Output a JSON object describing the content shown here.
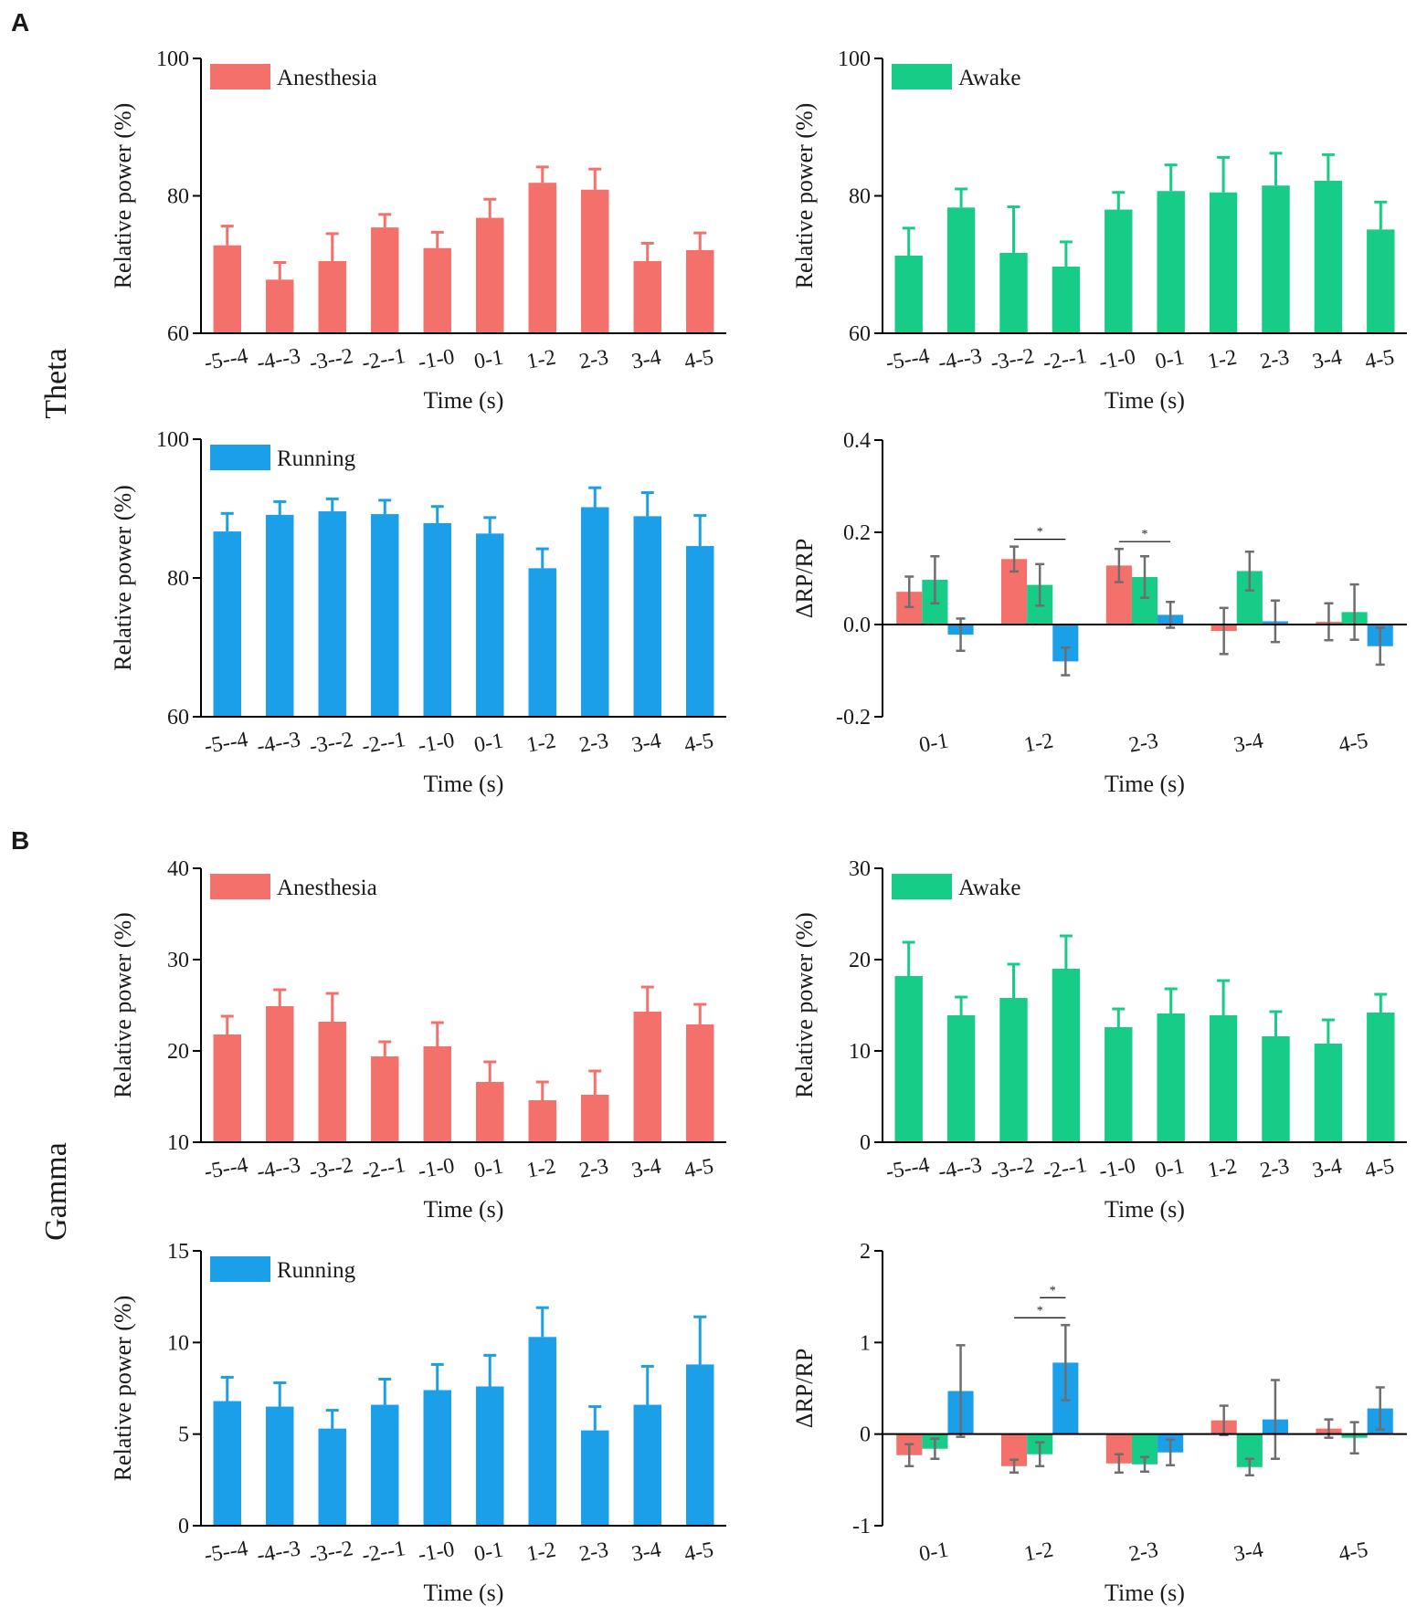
{
  "panels": {
    "A": {
      "letter": "A",
      "band": "Theta"
    },
    "B": {
      "letter": "B",
      "band": "Gamma"
    }
  },
  "colors": {
    "anesthesia": "#F4706B",
    "awake": "#16CC86",
    "running": "#1B9FE9",
    "error_bar_delta": "#6E6E6E",
    "axis": "#000000"
  },
  "chart_data": [
    {
      "id": "theta-anesthesia",
      "type": "bar",
      "series_key": "anesthesia",
      "legend": "Anesthesia",
      "categories": [
        "-5--4",
        "-4--3",
        "-3--2",
        "-2--1",
        "-1-0",
        "0-1",
        "1-2",
        "2-3",
        "3-4",
        "4-5"
      ],
      "values": [
        72.8,
        67.8,
        70.5,
        75.4,
        72.4,
        76.8,
        81.9,
        80.9,
        70.5,
        72.1
      ],
      "errors": [
        2.8,
        2.5,
        4.0,
        1.9,
        2.3,
        2.7,
        2.3,
        3.0,
        2.6,
        2.5
      ],
      "ylim": [
        60,
        100
      ],
      "yticks": [
        60,
        80,
        100
      ],
      "yticklabels": [
        "60",
        "80",
        "100"
      ],
      "ylabel": "Relative power (%)",
      "xlabel": "Time (s)"
    },
    {
      "id": "theta-awake",
      "type": "bar",
      "series_key": "awake",
      "legend": "Awake",
      "categories": [
        "-5--4",
        "-4--3",
        "-3--2",
        "-2--1",
        "-1-0",
        "0-1",
        "1-2",
        "2-3",
        "3-4",
        "4-5"
      ],
      "values": [
        71.3,
        78.3,
        71.7,
        69.7,
        78.0,
        80.7,
        80.5,
        81.5,
        82.2,
        75.1
      ],
      "errors": [
        4.0,
        2.7,
        6.7,
        3.6,
        2.5,
        3.8,
        5.1,
        4.7,
        3.8,
        4.0
      ],
      "ylim": [
        60,
        100
      ],
      "yticks": [
        60,
        80,
        100
      ],
      "yticklabels": [
        "60",
        "80",
        "100"
      ],
      "ylabel": "Relative power (%)",
      "xlabel": "Time (s)"
    },
    {
      "id": "theta-running",
      "type": "bar",
      "series_key": "running",
      "legend": "Running",
      "categories": [
        "-5--4",
        "-4--3",
        "-3--2",
        "-2--1",
        "-1-0",
        "0-1",
        "1-2",
        "2-3",
        "3-4",
        "4-5"
      ],
      "values": [
        86.7,
        89.1,
        89.6,
        89.2,
        87.9,
        86.4,
        81.4,
        90.2,
        88.9,
        84.6
      ],
      "errors": [
        2.6,
        1.9,
        1.8,
        2.0,
        2.4,
        2.3,
        2.8,
        2.8,
        3.4,
        4.4
      ],
      "ylim": [
        60,
        100
      ],
      "yticks": [
        60,
        80,
        100
      ],
      "yticklabels": [
        "60",
        "80",
        "100"
      ],
      "ylabel": "Relative power (%)",
      "xlabel": "Time (s)"
    },
    {
      "id": "theta-delta",
      "type": "grouped-bar",
      "categories": [
        "0-1",
        "1-2",
        "2-3",
        "3-4",
        "4-5"
      ],
      "series": [
        {
          "key": "anesthesia",
          "values": [
            0.071,
            0.142,
            0.128,
            -0.014,
            0.006
          ],
          "errors": [
            0.033,
            0.027,
            0.036,
            0.05,
            0.04
          ]
        },
        {
          "key": "awake",
          "values": [
            0.097,
            0.086,
            0.103,
            0.116,
            0.027
          ],
          "errors": [
            0.051,
            0.045,
            0.045,
            0.042,
            0.06
          ]
        },
        {
          "key": "running",
          "values": [
            -0.022,
            -0.08,
            0.021,
            0.007,
            -0.047
          ],
          "errors": [
            0.035,
            0.03,
            0.028,
            0.045,
            0.04
          ]
        }
      ],
      "significance": [
        {
          "category": "1-2",
          "from": "anesthesia",
          "to": "running",
          "label": "*"
        },
        {
          "category": "2-3",
          "from": "anesthesia",
          "to": "running",
          "label": "*"
        }
      ],
      "ylim": [
        -0.2,
        0.4
      ],
      "yticks": [
        -0.2,
        0.0,
        0.2,
        0.4
      ],
      "yticklabels": [
        "-0.2",
        "0.0",
        "0.2",
        "0.4"
      ],
      "ylabel": "ΔRP/RP",
      "xlabel": "Time (s)"
    },
    {
      "id": "gamma-anesthesia",
      "type": "bar",
      "series_key": "anesthesia",
      "legend": "Anesthesia",
      "categories": [
        "-5--4",
        "-4--3",
        "-3--2",
        "-2--1",
        "-1-0",
        "0-1",
        "1-2",
        "2-3",
        "3-4",
        "4-5"
      ],
      "values": [
        21.8,
        24.9,
        23.2,
        19.4,
        20.5,
        16.6,
        14.6,
        15.2,
        24.3,
        22.9
      ],
      "errors": [
        2.0,
        1.8,
        3.1,
        1.6,
        2.6,
        2.2,
        2.0,
        2.6,
        2.7,
        2.2
      ],
      "ylim": [
        10,
        40
      ],
      "yticks": [
        10,
        20,
        30,
        40
      ],
      "yticklabels": [
        "10",
        "20",
        "30",
        "40"
      ],
      "ylabel": "Relative power (%)",
      "xlabel": "Time (s)"
    },
    {
      "id": "gamma-awake",
      "type": "bar",
      "series_key": "awake",
      "legend": "Awake",
      "categories": [
        "-5--4",
        "-4--3",
        "-3--2",
        "-2--1",
        "-1-0",
        "0-1",
        "1-2",
        "2-3",
        "3-4",
        "4-5"
      ],
      "values": [
        18.2,
        13.9,
        15.8,
        19.0,
        12.6,
        14.1,
        13.9,
        11.6,
        10.8,
        14.2
      ],
      "errors": [
        3.7,
        2.0,
        3.7,
        3.6,
        2.0,
        2.7,
        3.8,
        2.7,
        2.6,
        2.0
      ],
      "ylim": [
        0,
        30
      ],
      "yticks": [
        0,
        10,
        20,
        30
      ],
      "yticklabels": [
        "0",
        "10",
        "20",
        "30"
      ],
      "ylabel": "Relative power (%)",
      "xlabel": "Time (s)"
    },
    {
      "id": "gamma-running",
      "type": "bar",
      "series_key": "running",
      "legend": "Running",
      "categories": [
        "-5--4",
        "-4--3",
        "-3--2",
        "-2--1",
        "-1-0",
        "0-1",
        "1-2",
        "2-3",
        "3-4",
        "4-5"
      ],
      "values": [
        6.8,
        6.5,
        5.3,
        6.6,
        7.4,
        7.6,
        10.3,
        5.2,
        6.6,
        8.8
      ],
      "errors": [
        1.3,
        1.3,
        1.0,
        1.4,
        1.4,
        1.7,
        1.6,
        1.3,
        2.1,
        2.6
      ],
      "ylim": [
        0,
        15
      ],
      "yticks": [
        0,
        5,
        10,
        15
      ],
      "yticklabels": [
        "0",
        "5",
        "10",
        "15"
      ],
      "ylabel": "Relative power (%)",
      "xlabel": "Time (s)"
    },
    {
      "id": "gamma-delta",
      "type": "grouped-bar",
      "categories": [
        "0-1",
        "1-2",
        "2-3",
        "3-4",
        "4-5"
      ],
      "series": [
        {
          "key": "anesthesia",
          "values": [
            -0.23,
            -0.35,
            -0.32,
            0.15,
            0.06
          ],
          "errors": [
            0.12,
            0.07,
            0.1,
            0.16,
            0.1
          ]
        },
        {
          "key": "awake",
          "values": [
            -0.16,
            -0.22,
            -0.33,
            -0.36,
            -0.04
          ],
          "errors": [
            0.11,
            0.13,
            0.08,
            0.09,
            0.17
          ]
        },
        {
          "key": "running",
          "values": [
            0.47,
            0.78,
            -0.2,
            0.16,
            0.28
          ],
          "errors": [
            0.5,
            0.41,
            0.14,
            0.43,
            0.23
          ]
        }
      ],
      "significance": [
        {
          "category": "1-2",
          "from": "anesthesia",
          "to": "running",
          "label": "*"
        },
        {
          "category": "1-2",
          "from": "awake",
          "to": "running",
          "label": "*"
        }
      ],
      "ylim": [
        -1,
        2
      ],
      "yticks": [
        -1,
        0,
        1,
        2
      ],
      "yticklabels": [
        "-1",
        "0",
        "1",
        "2"
      ],
      "ylabel": "ΔRP/RP",
      "xlabel": "Time (s)"
    }
  ]
}
